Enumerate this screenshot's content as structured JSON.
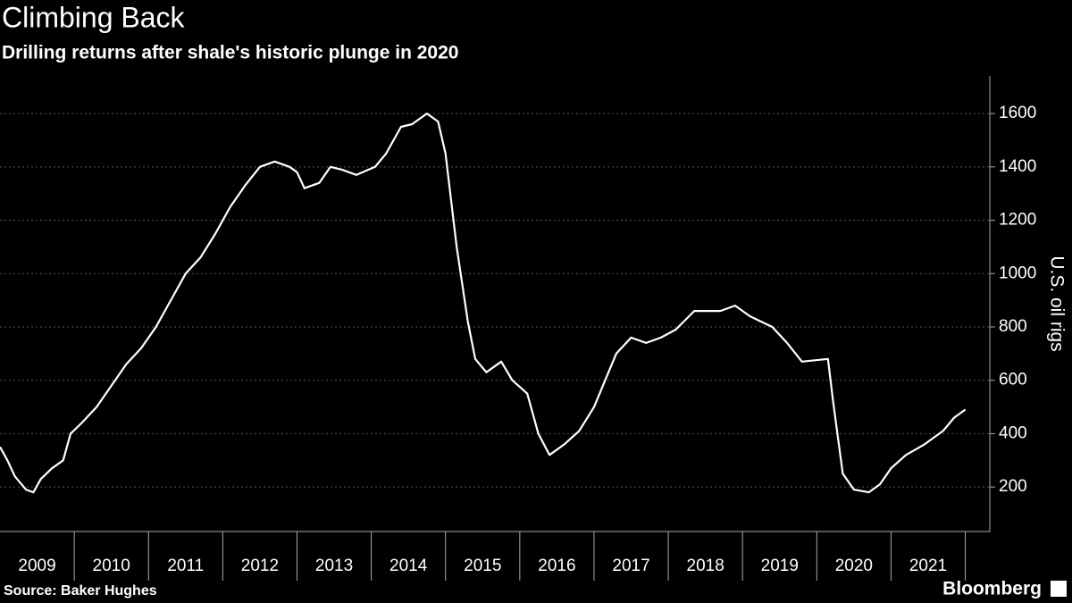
{
  "chart_data": {
    "type": "line",
    "title": "Climbing Back",
    "subtitle": "Drilling returns after shale's historic plunge in 2020",
    "ylabel": "U.S. oil rigs",
    "source": "Source: Baker Hughes",
    "brand": "Bloomberg",
    "color": "#ffffff",
    "x": [
      2009.0,
      2009.1,
      2009.2,
      2009.35,
      2009.45,
      2009.55,
      2009.7,
      2009.85,
      2009.95,
      2010.1,
      2010.3,
      2010.5,
      2010.7,
      2010.9,
      2011.1,
      2011.3,
      2011.5,
      2011.7,
      2011.9,
      2012.1,
      2012.3,
      2012.5,
      2012.7,
      2012.9,
      2013.0,
      2013.1,
      2013.3,
      2013.45,
      2013.6,
      2013.8,
      2014.05,
      2014.2,
      2014.4,
      2014.55,
      2014.75,
      2014.9,
      2015.0,
      2015.15,
      2015.3,
      2015.4,
      2015.55,
      2015.75,
      2015.9,
      2016.1,
      2016.25,
      2016.4,
      2016.6,
      2016.8,
      2017.0,
      2017.15,
      2017.3,
      2017.5,
      2017.7,
      2017.9,
      2018.1,
      2018.35,
      2018.7,
      2018.9,
      2019.1,
      2019.4,
      2019.6,
      2019.8,
      2020.15,
      2020.22,
      2020.35,
      2020.5,
      2020.7,
      2020.85,
      2021.0,
      2021.2,
      2021.45,
      2021.7,
      2021.85,
      2022.0
    ],
    "values": [
      350,
      300,
      240,
      190,
      180,
      230,
      270,
      300,
      400,
      440,
      500,
      580,
      660,
      720,
      800,
      900,
      1000,
      1060,
      1150,
      1250,
      1330,
      1400,
      1420,
      1400,
      1380,
      1320,
      1340,
      1400,
      1390,
      1370,
      1400,
      1450,
      1550,
      1560,
      1600,
      1570,
      1450,
      1100,
      820,
      680,
      630,
      670,
      600,
      550,
      400,
      320,
      360,
      410,
      500,
      600,
      700,
      760,
      740,
      760,
      790,
      860,
      860,
      880,
      840,
      800,
      740,
      670,
      680,
      520,
      250,
      190,
      180,
      210,
      270,
      320,
      360,
      410,
      460,
      490
    ],
    "xlim": [
      2009,
      2022.33
    ],
    "xsep": [
      2010,
      2011,
      2012,
      2013,
      2014,
      2015,
      2016,
      2017,
      2018,
      2019,
      2020,
      2021,
      2022
    ],
    "xticks": [
      {
        "value": 2009.5,
        "label": "2009"
      },
      {
        "value": 2010.5,
        "label": "2010"
      },
      {
        "value": 2011.5,
        "label": "2011"
      },
      {
        "value": 2012.5,
        "label": "2012"
      },
      {
        "value": 2013.5,
        "label": "2013"
      },
      {
        "value": 2014.5,
        "label": "2014"
      },
      {
        "value": 2015.5,
        "label": "2015"
      },
      {
        "value": 2016.5,
        "label": "2016"
      },
      {
        "value": 2017.5,
        "label": "2017"
      },
      {
        "value": 2018.5,
        "label": "2018"
      },
      {
        "value": 2019.5,
        "label": "2019"
      },
      {
        "value": 2020.5,
        "label": "2020"
      },
      {
        "value": 2021.5,
        "label": "2021"
      }
    ],
    "ylim": [
      33,
      1741
    ],
    "yticks": [
      200,
      400,
      600,
      800,
      1000,
      1200,
      1400,
      1600
    ],
    "grid": true
  }
}
